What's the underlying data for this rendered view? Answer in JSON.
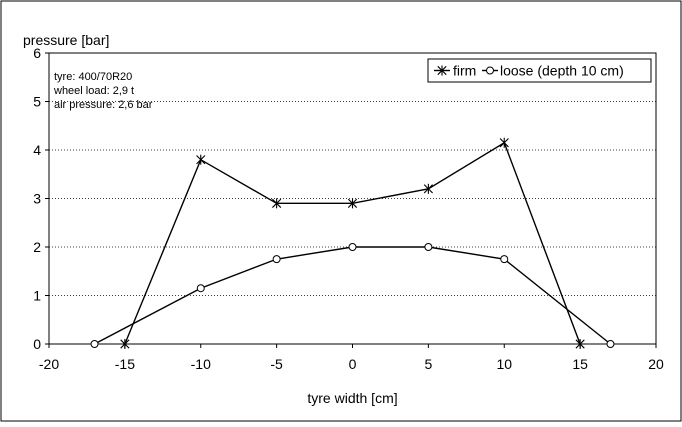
{
  "chart_data": {
    "type": "line",
    "title": "",
    "xlabel": "tyre width [cm]",
    "ylabel": "pressure [bar]",
    "xlim": [
      -20,
      20
    ],
    "ylim": [
      0,
      6
    ],
    "xticks": [
      -20,
      -15,
      -10,
      -5,
      0,
      5,
      10,
      15,
      20
    ],
    "yticks": [
      0,
      1,
      2,
      3,
      4,
      5,
      6
    ],
    "grid": "horizontal dotted",
    "legend_position": "top-right",
    "annotations": [
      "tyre: 400/70R20",
      "wheel load: 2,9 t",
      "air pressure: 2,6 bar"
    ],
    "series": [
      {
        "name": "firm",
        "marker": "star",
        "color": "#000000",
        "x": [
          -15,
          -10,
          -5,
          0,
          5,
          10,
          15
        ],
        "y": [
          0,
          3.8,
          2.9,
          2.9,
          3.2,
          4.15,
          0
        ]
      },
      {
        "name": "loose (depth 10 cm)",
        "marker": "circle",
        "color": "#000000",
        "x": [
          -17,
          -10,
          -5,
          0,
          5,
          10,
          17
        ],
        "y": [
          0,
          1.15,
          1.75,
          2.0,
          2.0,
          1.75,
          0
        ]
      }
    ]
  }
}
